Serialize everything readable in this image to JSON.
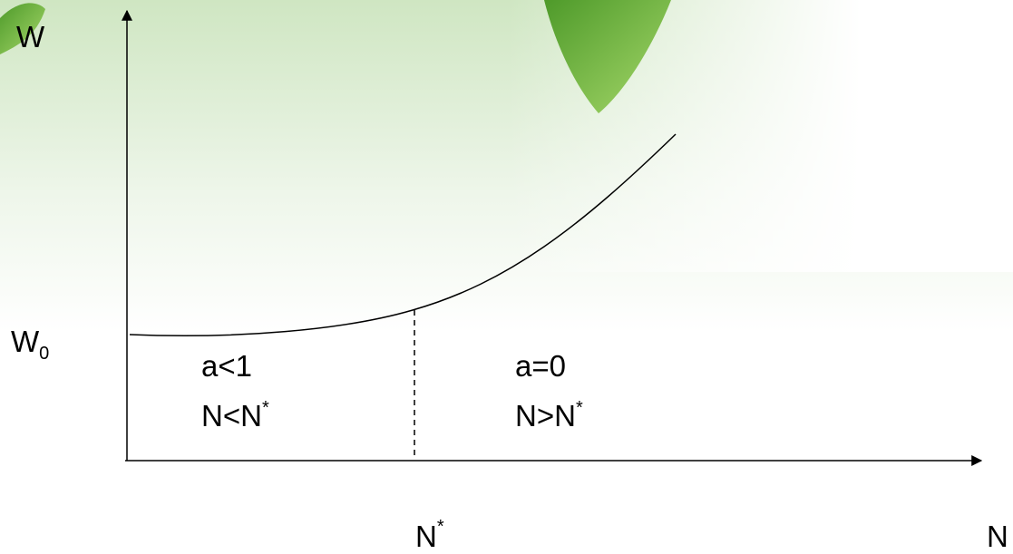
{
  "axes": {
    "y_label": "W",
    "x_label": "N"
  },
  "w0_label": {
    "base": "W",
    "sub": "0"
  },
  "threshold_label": {
    "base": "N",
    "sup": "*"
  },
  "regions": [
    {
      "condition": "a<1",
      "range": {
        "base": "N<N",
        "sup": "*"
      }
    },
    {
      "condition": "a=0",
      "range": {
        "base": "N>N",
        "sup": "*"
      }
    }
  ]
}
